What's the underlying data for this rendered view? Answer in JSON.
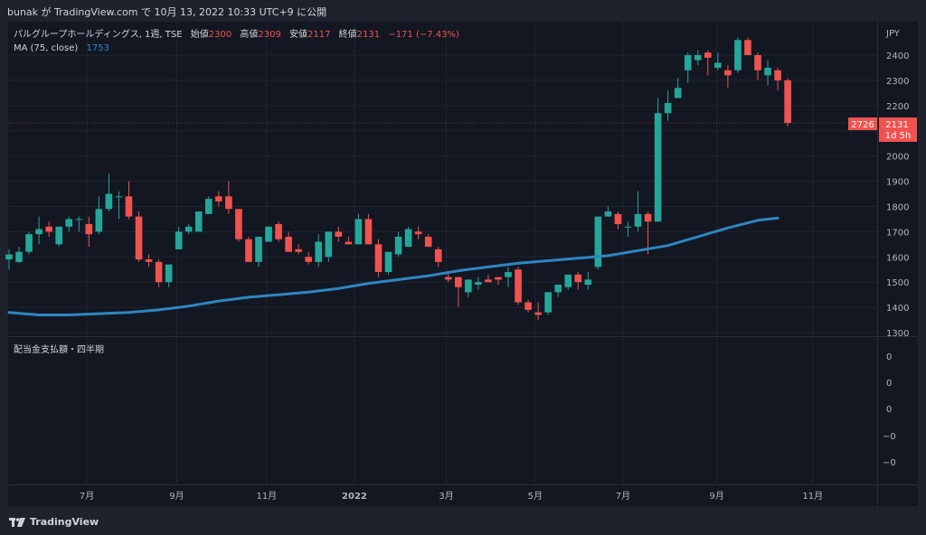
{
  "header": {
    "publish_line": "bunak が TradingView.com で 10月 13, 2022 10:33 UTC+9 に公開"
  },
  "legend": {
    "symbol": "パルグループホールディングス, 1週, TSE",
    "open_label": "始値",
    "open_value": "2300",
    "high_label": "高値",
    "high_value": "2309",
    "low_label": "安値",
    "low_value": "2117",
    "close_label": "終値",
    "close_value": "2131",
    "change": "−171 (−7.43%)",
    "ma_label": "MA (75, close)",
    "ma_value": "1753"
  },
  "price_tags": {
    "last_left": "2726",
    "last_price": "2131",
    "countdown": "1d 5h"
  },
  "lower_pane": {
    "title": "配当金支払額・四半期",
    "ticks": [
      "0",
      "0",
      "0",
      "−0",
      "−0"
    ]
  },
  "footer": {
    "logo_text": "TradingView"
  },
  "colors": {
    "up": "#26a69a",
    "down": "#ef5350",
    "ma": "#2e86c1",
    "background": "#131722"
  },
  "chart_data": {
    "type": "candlestick",
    "currency": "JPY",
    "ylim": [
      1300,
      2480
    ],
    "y_ticks": [
      1300,
      1400,
      1500,
      1600,
      1700,
      1800,
      1900,
      2000,
      2100,
      2200,
      2300,
      2400
    ],
    "x_labels": [
      "7月",
      "9月",
      "11月",
      "2022",
      "3月",
      "5月",
      "7月",
      "9月",
      "11月"
    ],
    "x_label_weeks": [
      7.8,
      16.8,
      25.8,
      34.6,
      43.8,
      52.7,
      61.5,
      70.9,
      80.5
    ],
    "last_price": 2131,
    "series": [
      {
        "name": "パルグループホールディングス",
        "ohlc": [
          [
            1590,
            1630,
            1550,
            1610
          ],
          [
            1580,
            1640,
            1575,
            1620
          ],
          [
            1620,
            1700,
            1610,
            1690
          ],
          [
            1690,
            1760,
            1650,
            1710
          ],
          [
            1720,
            1740,
            1680,
            1700
          ],
          [
            1650,
            1720,
            1640,
            1720
          ],
          [
            1720,
            1760,
            1700,
            1750
          ],
          [
            1750,
            1760,
            1700,
            1750
          ],
          [
            1730,
            1760,
            1640,
            1690
          ],
          [
            1700,
            1840,
            1690,
            1790
          ],
          [
            1790,
            1930,
            1780,
            1850
          ],
          [
            1840,
            1860,
            1750,
            1840
          ],
          [
            1840,
            1900,
            1750,
            1760
          ],
          [
            1760,
            1780,
            1580,
            1590
          ],
          [
            1590,
            1610,
            1560,
            1580
          ],
          [
            1580,
            1590,
            1480,
            1500
          ],
          [
            1500,
            1570,
            1480,
            1570
          ],
          [
            1630,
            1720,
            1630,
            1700
          ],
          [
            1700,
            1730,
            1690,
            1720
          ],
          [
            1700,
            1780,
            1700,
            1780
          ],
          [
            1770,
            1840,
            1770,
            1830
          ],
          [
            1840,
            1860,
            1800,
            1820
          ],
          [
            1840,
            1900,
            1770,
            1790
          ],
          [
            1790,
            1790,
            1660,
            1670
          ],
          [
            1670,
            1680,
            1580,
            1580
          ],
          [
            1580,
            1680,
            1560,
            1680
          ],
          [
            1660,
            1720,
            1660,
            1720
          ],
          [
            1730,
            1740,
            1660,
            1670
          ],
          [
            1680,
            1700,
            1620,
            1620
          ],
          [
            1630,
            1650,
            1610,
            1620
          ],
          [
            1600,
            1620,
            1570,
            1580
          ],
          [
            1580,
            1690,
            1560,
            1660
          ],
          [
            1600,
            1700,
            1580,
            1700
          ],
          [
            1700,
            1720,
            1660,
            1680
          ],
          [
            1660,
            1680,
            1650,
            1650
          ],
          [
            1650,
            1770,
            1650,
            1750
          ],
          [
            1750,
            1770,
            1650,
            1650
          ],
          [
            1650,
            1670,
            1520,
            1540
          ],
          [
            1540,
            1620,
            1530,
            1620
          ],
          [
            1610,
            1700,
            1600,
            1680
          ],
          [
            1640,
            1720,
            1640,
            1710
          ],
          [
            1700,
            1720,
            1670,
            1690
          ],
          [
            1680,
            1690,
            1640,
            1640
          ],
          [
            1630,
            1640,
            1560,
            1580
          ],
          [
            1520,
            1540,
            1500,
            1510
          ],
          [
            1520,
            1520,
            1400,
            1480
          ],
          [
            1460,
            1510,
            1440,
            1510
          ],
          [
            1490,
            1520,
            1470,
            1500
          ],
          [
            1510,
            1530,
            1500,
            1500
          ],
          [
            1520,
            1520,
            1490,
            1510
          ],
          [
            1520,
            1560,
            1480,
            1540
          ],
          [
            1550,
            1560,
            1410,
            1420
          ],
          [
            1420,
            1430,
            1380,
            1390
          ],
          [
            1380,
            1420,
            1350,
            1370
          ],
          [
            1380,
            1460,
            1370,
            1460
          ],
          [
            1460,
            1490,
            1440,
            1490
          ],
          [
            1480,
            1520,
            1470,
            1530
          ],
          [
            1530,
            1540,
            1470,
            1500
          ],
          [
            1490,
            1540,
            1470,
            1510
          ],
          [
            1560,
            1760,
            1550,
            1760
          ],
          [
            1760,
            1800,
            1760,
            1780
          ],
          [
            1770,
            1780,
            1710,
            1730
          ],
          [
            1720,
            1740,
            1680,
            1720
          ],
          [
            1720,
            1860,
            1700,
            1770
          ],
          [
            1770,
            1780,
            1610,
            1740
          ],
          [
            1740,
            2230,
            1740,
            2170
          ],
          [
            2170,
            2260,
            2140,
            2210
          ],
          [
            2230,
            2310,
            2230,
            2270
          ],
          [
            2340,
            2410,
            2290,
            2400
          ],
          [
            2380,
            2420,
            2360,
            2400
          ],
          [
            2410,
            2420,
            2320,
            2390
          ],
          [
            2350,
            2410,
            2340,
            2370
          ],
          [
            2340,
            2360,
            2270,
            2320
          ],
          [
            2340,
            2470,
            2330,
            2460
          ],
          [
            2460,
            2470,
            2400,
            2400
          ],
          [
            2400,
            2410,
            2300,
            2340
          ],
          [
            2320,
            2380,
            2280,
            2350
          ],
          [
            2340,
            2350,
            2260,
            2300
          ],
          [
            2300,
            2309,
            2117,
            2131
          ]
        ]
      },
      {
        "name": "MA (75, close)",
        "points": [
          [
            0,
            1380
          ],
          [
            3,
            1370
          ],
          [
            6,
            1370
          ],
          [
            9,
            1375
          ],
          [
            12,
            1380
          ],
          [
            15,
            1390
          ],
          [
            18,
            1405
          ],
          [
            21,
            1425
          ],
          [
            24,
            1440
          ],
          [
            27,
            1450
          ],
          [
            30,
            1460
          ],
          [
            33,
            1475
          ],
          [
            36,
            1495
          ],
          [
            39,
            1510
          ],
          [
            42,
            1525
          ],
          [
            45,
            1545
          ],
          [
            48,
            1560
          ],
          [
            51,
            1575
          ],
          [
            54,
            1585
          ],
          [
            57,
            1595
          ],
          [
            60,
            1605
          ],
          [
            63,
            1625
          ],
          [
            66,
            1645
          ],
          [
            69,
            1680
          ],
          [
            72,
            1715
          ],
          [
            75,
            1745
          ],
          [
            77,
            1754
          ]
        ]
      }
    ]
  }
}
